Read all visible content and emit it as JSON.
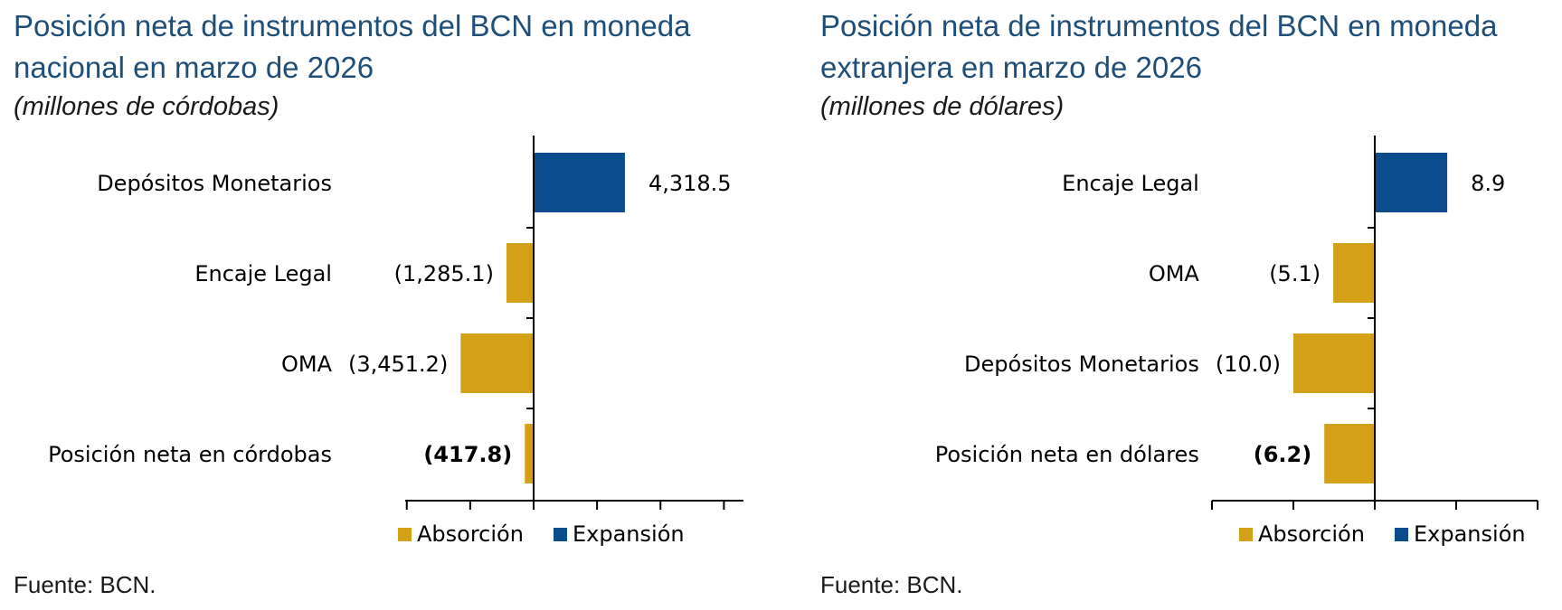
{
  "colors": {
    "absorcion": "#d4a017",
    "expansion": "#0b4d8c",
    "title": "#1f4e79"
  },
  "chart_data": [
    {
      "type": "bar",
      "orientation": "horizontal",
      "title": "Posición neta de instrumentos del BCN en moneda nacional en marzo de 2026",
      "subtitle": "(millones de córdobas)",
      "categories": [
        "Depósitos Monetarios",
        "Encaje Legal",
        "OMA",
        "Posición neta en córdobas"
      ],
      "values": [
        4318.5,
        -1285.1,
        -3451.2,
        -417.8
      ],
      "labels": [
        "4,318.5",
        "(1,285.1)",
        "(3,451.2)",
        "(417.8)"
      ],
      "series": [
        "expansion",
        "absorcion",
        "absorcion",
        "absorcion"
      ],
      "bold": [
        false,
        false,
        false,
        true
      ],
      "xlim": [
        -6000,
        10000
      ],
      "xtick_step": 3000,
      "legend": [
        "Absorción",
        "Expansión"
      ],
      "source": "Fuente: BCN."
    },
    {
      "type": "bar",
      "orientation": "horizontal",
      "title": "Posición neta de instrumentos del BCN en moneda extranjera en marzo de 2026",
      "subtitle": "(millones de dólares)",
      "categories": [
        "Encaje Legal",
        "OMA",
        "Depósitos Monetarios",
        "Posición neta en dólares"
      ],
      "values": [
        8.9,
        -5.1,
        -10.0,
        -6.2
      ],
      "labels": [
        "8.9",
        "(5.1)",
        "(10.0)",
        "(6.2)"
      ],
      "series": [
        "expansion",
        "absorcion",
        "absorcion",
        "absorcion"
      ],
      "bold": [
        false,
        false,
        false,
        true
      ],
      "xlim": [
        -20,
        20
      ],
      "xtick_step": 10,
      "legend": [
        "Absorción",
        "Expansión"
      ],
      "source": "Fuente: BCN."
    }
  ]
}
